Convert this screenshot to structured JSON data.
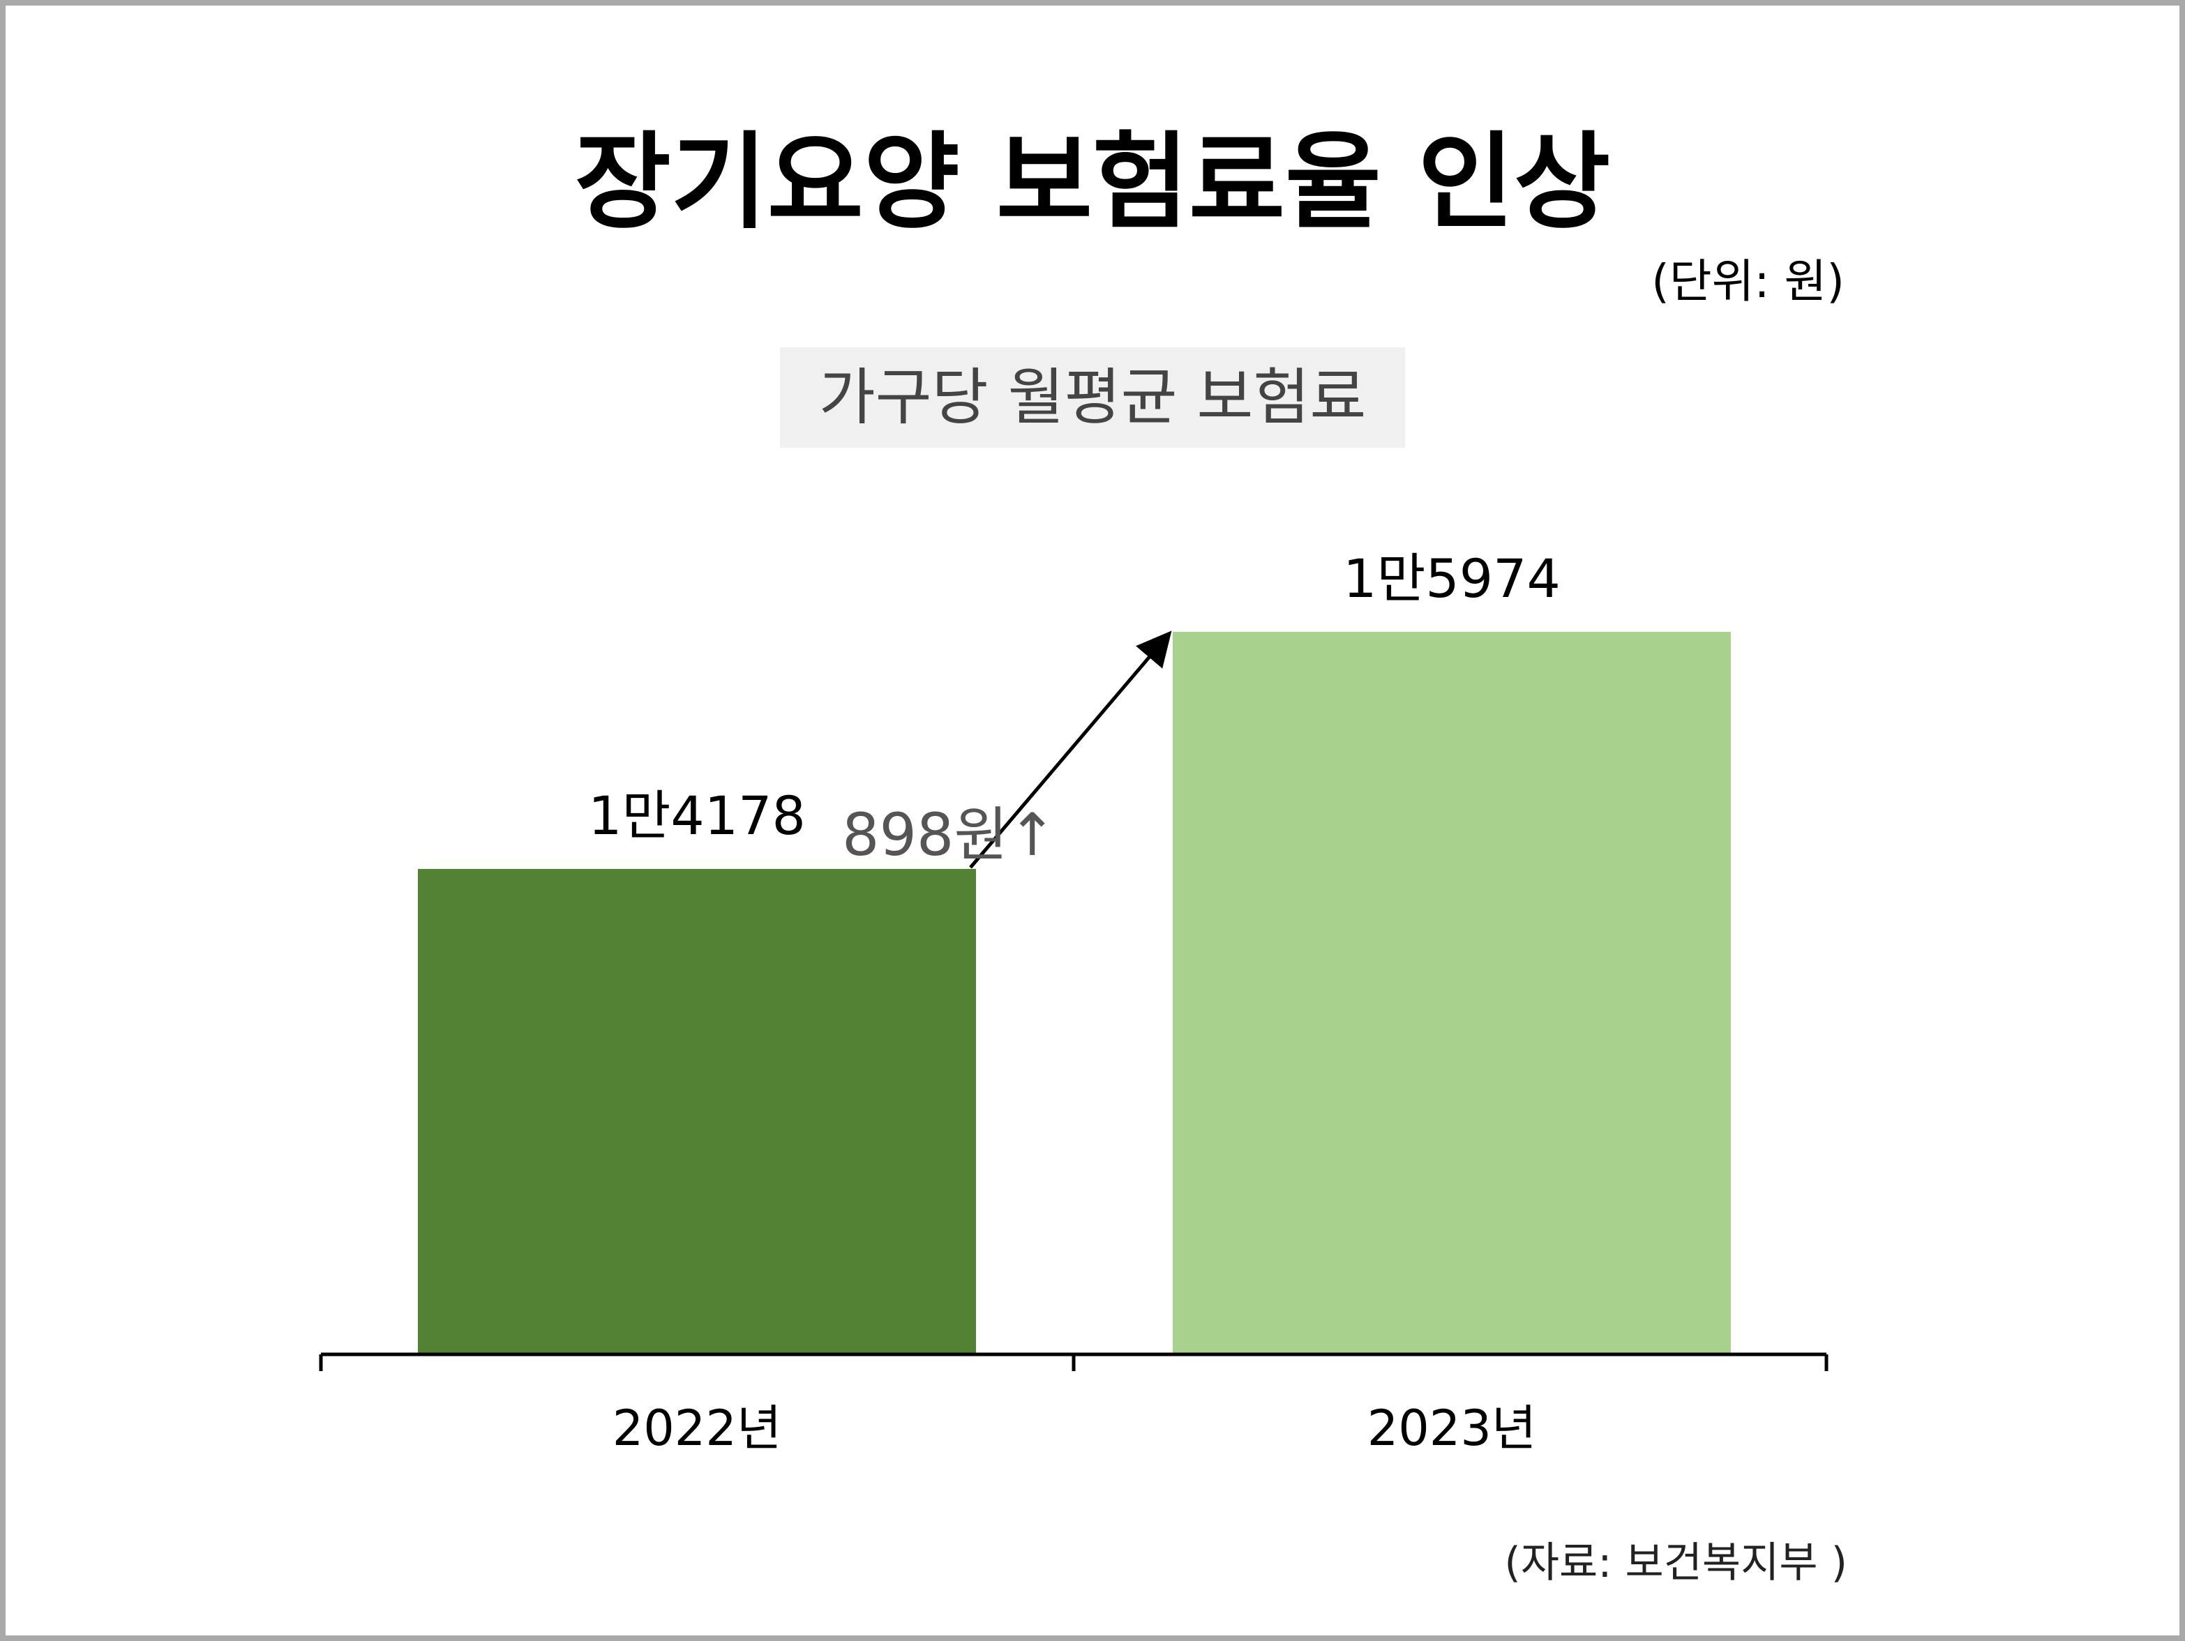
{
  "chart_data": {
    "type": "bar",
    "title": "장기요양 보험료율 인상",
    "subtitle": "가구당 월평균 보험료",
    "unit": "(단위: 원)",
    "source": "(자료: 보건복지부 )",
    "categories": [
      "2022년",
      "2023년"
    ],
    "values": [
      14178,
      15974
    ],
    "value_labels": [
      "1만4178",
      "1만5974"
    ],
    "colors": [
      "#548235",
      "#a9d18e"
    ],
    "annotation": "898원↑",
    "ylim": [
      0,
      16000
    ]
  }
}
